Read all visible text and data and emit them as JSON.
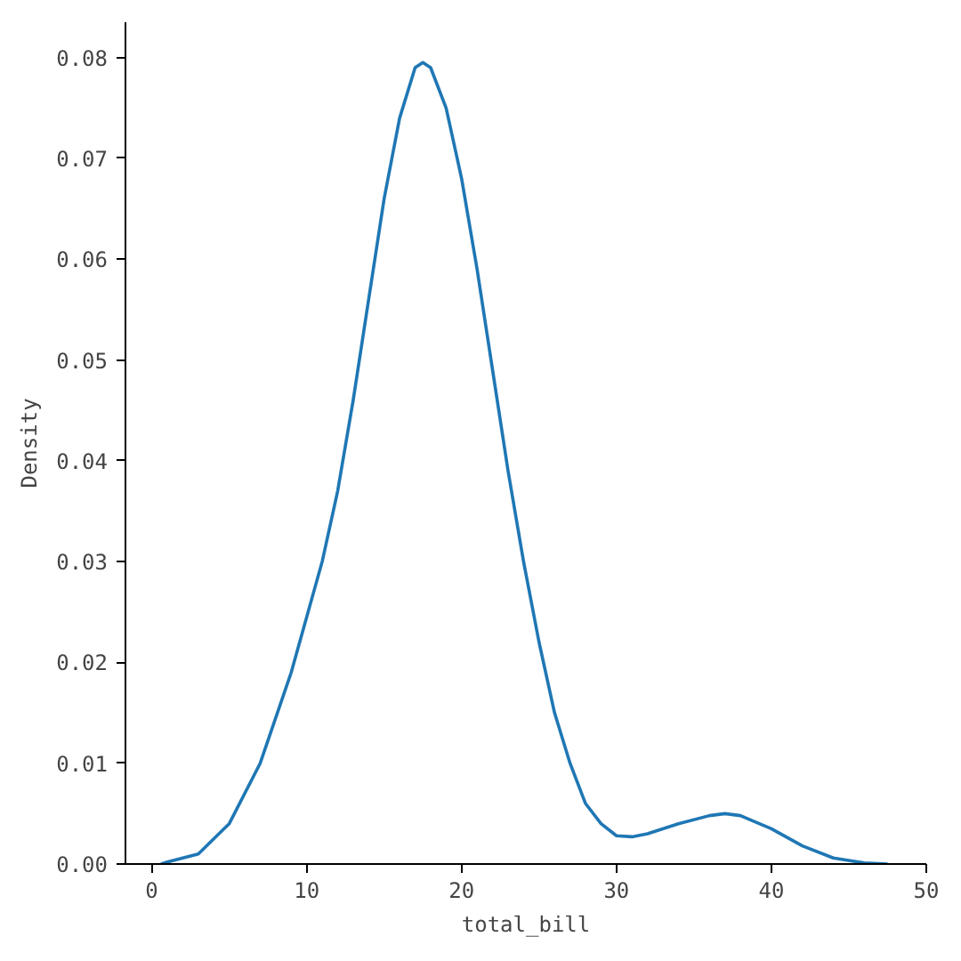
{
  "chart_data": {
    "type": "line",
    "xlabel": "total_bill",
    "ylabel": "Density",
    "x": [
      0.6,
      1,
      3,
      5,
      7,
      9,
      11,
      12,
      13,
      14,
      15,
      16,
      17,
      17.5,
      18,
      19,
      20,
      21,
      22,
      23,
      24,
      25,
      26,
      27,
      28,
      29,
      30,
      31,
      32,
      34,
      36,
      37,
      38,
      40,
      42,
      44,
      46,
      47.5
    ],
    "series": [
      {
        "color": "#1f77b4",
        "values": [
          0,
          0.0002,
          0.001,
          0.004,
          0.01,
          0.019,
          0.03,
          0.037,
          0.046,
          0.056,
          0.066,
          0.074,
          0.079,
          0.0795,
          0.079,
          0.075,
          0.068,
          0.059,
          0.049,
          0.039,
          0.03,
          0.022,
          0.015,
          0.01,
          0.006,
          0.004,
          0.0028,
          0.0027,
          0.003,
          0.004,
          0.0048,
          0.005,
          0.0048,
          0.0035,
          0.0018,
          0.0006,
          0.0001,
          0
        ]
      }
    ],
    "xlim": [
      -1.7,
      50
    ],
    "ylim": [
      0,
      0.0835
    ],
    "xticks": [
      0,
      10,
      20,
      30,
      40,
      50
    ],
    "yticks": [
      {
        "value": 0,
        "label": "0.00"
      },
      {
        "value": 0.01,
        "label": "0.01"
      },
      {
        "value": 0.02,
        "label": "0.02"
      },
      {
        "value": 0.03,
        "label": "0.03"
      },
      {
        "value": 0.04,
        "label": "0.04"
      },
      {
        "value": 0.05,
        "label": "0.05"
      },
      {
        "value": 0.06,
        "label": "0.06"
      },
      {
        "value": 0.07,
        "label": "0.07"
      },
      {
        "value": 0.08,
        "label": "0.08"
      }
    ],
    "grid": false,
    "line_style": "solid",
    "marker": "none"
  }
}
